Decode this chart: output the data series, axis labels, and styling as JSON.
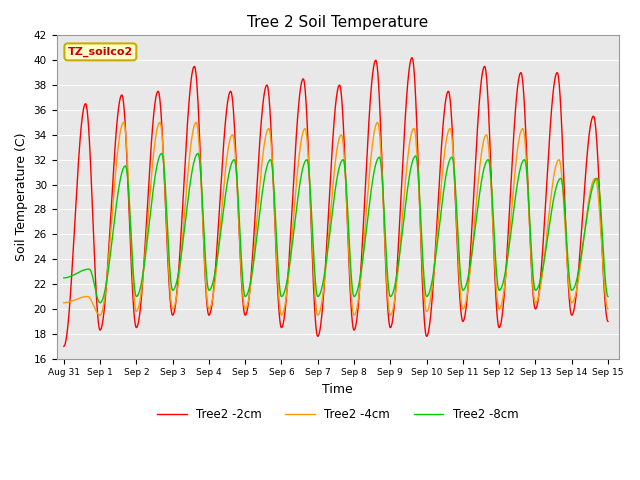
{
  "title": "Tree 2 Soil Temperature",
  "xlabel": "Time",
  "ylabel": "Soil Temperature (C)",
  "ylim": [
    16,
    42
  ],
  "yticks": [
    16,
    18,
    20,
    22,
    24,
    26,
    28,
    30,
    32,
    34,
    36,
    38,
    40,
    42
  ],
  "bg_color": "#e8e8e8",
  "fig_color": "#ffffff",
  "line_colors": [
    "#ff0000",
    "#ff9900",
    "#00cc00"
  ],
  "line_labels": [
    "Tree2 -2cm",
    "Tree2 -4cm",
    "Tree2 -8cm"
  ],
  "annotation_text": "TZ_soilco2",
  "annotation_color": "#cc0000",
  "annotation_bg": "#ffffcc",
  "annotation_border": "#ccaa00",
  "x_tick_positions": [
    0,
    1,
    2,
    3,
    4,
    5,
    6,
    7,
    8,
    9,
    10,
    11,
    12,
    13,
    14,
    15
  ],
  "x_tick_labels": [
    "Aug 31",
    "Sep 1",
    "Sep 2",
    "Sep 3",
    "Sep 4",
    "Sep 5",
    "Sep 6",
    "Sep 7",
    "Sep 8",
    "Sep 9",
    "Sep 10",
    "Sep 11",
    "Sep 12",
    "Sep 13",
    "Sep 14",
    "Sep 15"
  ],
  "num_days": 15,
  "peaks_2cm": [
    36.5,
    37.2,
    37.5,
    39.5,
    37.5,
    38.0,
    38.5,
    38.0,
    40.0,
    40.2,
    37.5,
    39.5,
    39.0,
    39.0,
    35.5,
    19.0
  ],
  "troughs_2cm": [
    17.0,
    18.3,
    18.5,
    19.5,
    19.5,
    19.5,
    18.5,
    17.8,
    18.3,
    18.5,
    17.8,
    19.0,
    18.5,
    20.0,
    19.5,
    19.0
  ],
  "peaks_4cm": [
    21.0,
    35.0,
    35.0,
    35.0,
    34.0,
    34.5,
    34.5,
    34.0,
    35.0,
    34.5,
    34.5,
    34.0,
    34.5,
    32.0,
    30.5,
    21.0
  ],
  "troughs_4cm": [
    20.5,
    19.5,
    19.8,
    20.0,
    20.0,
    20.0,
    19.5,
    19.5,
    19.5,
    19.5,
    19.8,
    20.0,
    20.0,
    20.5,
    20.5,
    20.0
  ],
  "peaks_8cm": [
    23.2,
    31.5,
    32.5,
    32.5,
    32.0,
    32.0,
    32.0,
    32.0,
    32.2,
    32.3,
    32.2,
    32.0,
    32.0,
    30.5,
    30.5,
    21.5
  ],
  "troughs_8cm": [
    22.5,
    20.5,
    21.0,
    21.5,
    21.5,
    21.0,
    21.0,
    21.0,
    21.0,
    21.0,
    21.0,
    21.5,
    21.5,
    21.5,
    21.5,
    21.0
  ]
}
